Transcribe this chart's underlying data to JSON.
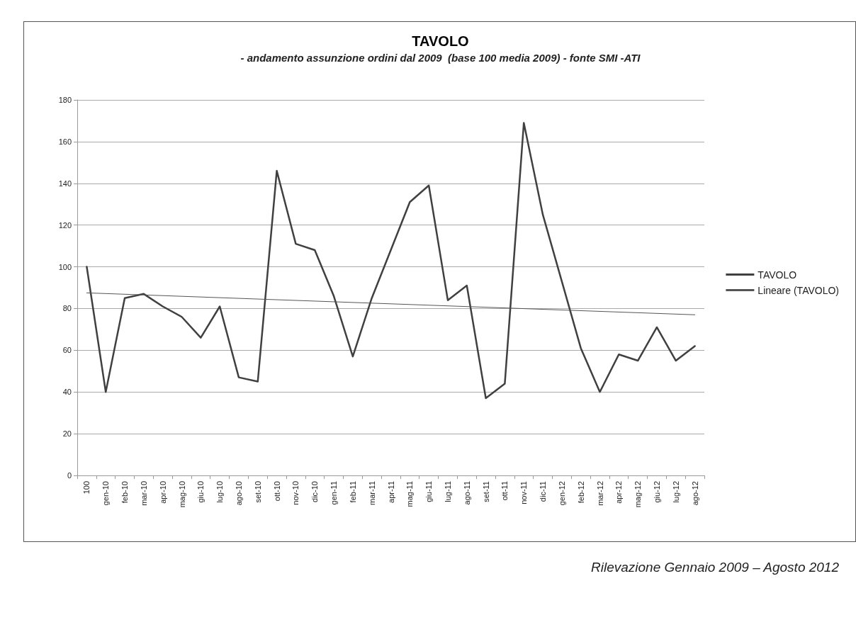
{
  "chart_data": {
    "type": "line",
    "title": "TAVOLO",
    "subtitle": "- andamento assunzione ordini dal 2009  (base 100 media 2009) - fonte SMI -ATI",
    "categories": [
      "100",
      "gen-10",
      "feb-10",
      "mar-10",
      "apr-10",
      "mag-10",
      "giu-10",
      "lug-10",
      "ago-10",
      "set-10",
      "ott-10",
      "nov-10",
      "dic-10",
      "gen-11",
      "feb-11",
      "mar-11",
      "apr-11",
      "mag-11",
      "giu-11",
      "lug-11",
      "ago-11",
      "set-11",
      "ott-11",
      "nov-11",
      "dic-11",
      "gen-12",
      "feb-12",
      "mar-12",
      "apr-12",
      "mag-12",
      "giu-12",
      "lug-12",
      "ago-12"
    ],
    "series": [
      {
        "name": "TAVOLO",
        "color": "#404040",
        "values": [
          100,
          40,
          85,
          87,
          81,
          76,
          66,
          81,
          47,
          45,
          146,
          111,
          108,
          86,
          57,
          85,
          108,
          131,
          139,
          84,
          91,
          37,
          44,
          169,
          125,
          93,
          61,
          40,
          58,
          55,
          71,
          55,
          62
        ]
      },
      {
        "name": "Lineare (TAVOLO)",
        "color": "#555555",
        "line_style": "solid",
        "values": [
          87.5,
          null,
          null,
          null,
          null,
          null,
          null,
          null,
          null,
          null,
          null,
          null,
          null,
          null,
          null,
          null,
          null,
          null,
          null,
          null,
          null,
          null,
          null,
          null,
          null,
          null,
          null,
          null,
          null,
          null,
          null,
          null,
          77
        ]
      }
    ],
    "ylim": [
      0,
      180
    ],
    "yticks": [
      0,
      20,
      40,
      60,
      80,
      100,
      120,
      140,
      160,
      180
    ],
    "grid": "y",
    "legend": "right",
    "marker": "none",
    "annotations": [
      "Rilevazione Gennaio 2009 – Agosto 2012"
    ]
  }
}
